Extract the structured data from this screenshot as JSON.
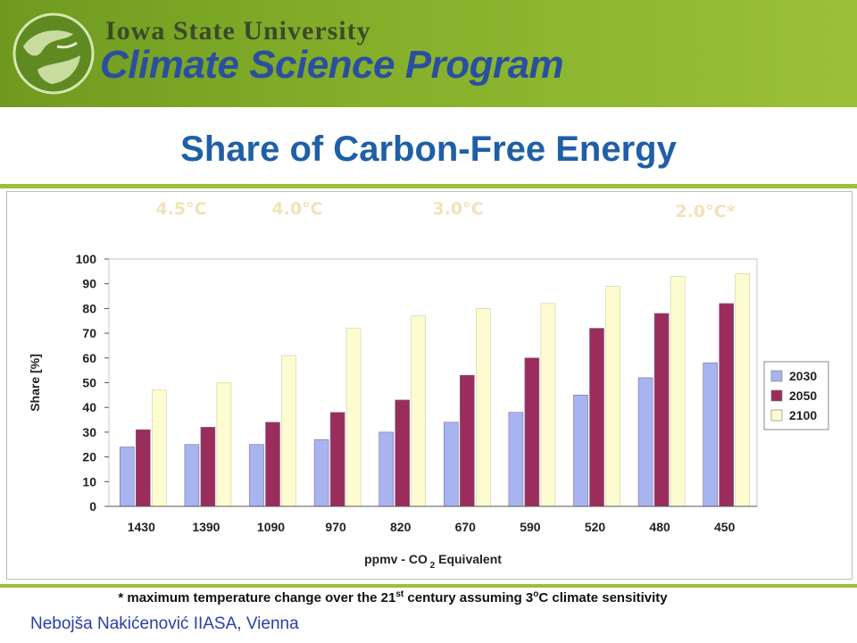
{
  "header": {
    "university": "Iowa State University",
    "program": "Climate Science Program"
  },
  "slide_title": "Share of Carbon-Free Energy",
  "temperature_labels": [
    "4.5°C",
    "4.0°C",
    "3.0°C",
    "2.0°C*"
  ],
  "footnote": {
    "text_before": "* maximum temperature change over the 21",
    "sup_st": "st",
    "text_mid": " century assuming 3",
    "sup_o": "o",
    "text_after": "C climate sensitivity"
  },
  "author": "Nebojša Nakićenović IIASA, Vienna",
  "colors": {
    "s2030": "#a8b4f0",
    "s2050": "#9b2d5c",
    "s2100": "#fdfbd0",
    "temp_label": "#f2e2b8",
    "title": "#1f5fa6"
  },
  "chart_data": {
    "type": "bar",
    "title": "",
    "xlabel": "ppmv - CO2 Equivalent",
    "xlabel_main": "ppmv - CO",
    "xlabel_sub": "2",
    "xlabel_tail": " Equivalent",
    "ylabel": "Share [%]",
    "ylim": [
      0,
      100
    ],
    "yticks": [
      "0",
      "10",
      "20",
      "30",
      "40",
      "50",
      "60",
      "70",
      "80",
      "90",
      "100"
    ],
    "grid": false,
    "legend_position": "right",
    "categories": [
      "1430",
      "1390",
      "1090",
      "970",
      "820",
      "670",
      "590",
      "520",
      "480",
      "450"
    ],
    "series": [
      {
        "name": "2030",
        "values": [
          24,
          25,
          25,
          27,
          30,
          34,
          38,
          45,
          52,
          58
        ]
      },
      {
        "name": "2050",
        "values": [
          31,
          32,
          34,
          38,
          43,
          53,
          60,
          72,
          78,
          82
        ]
      },
      {
        "name": "2100",
        "values": [
          47,
          50,
          61,
          72,
          77,
          80,
          82,
          89,
          93,
          94
        ]
      }
    ]
  }
}
